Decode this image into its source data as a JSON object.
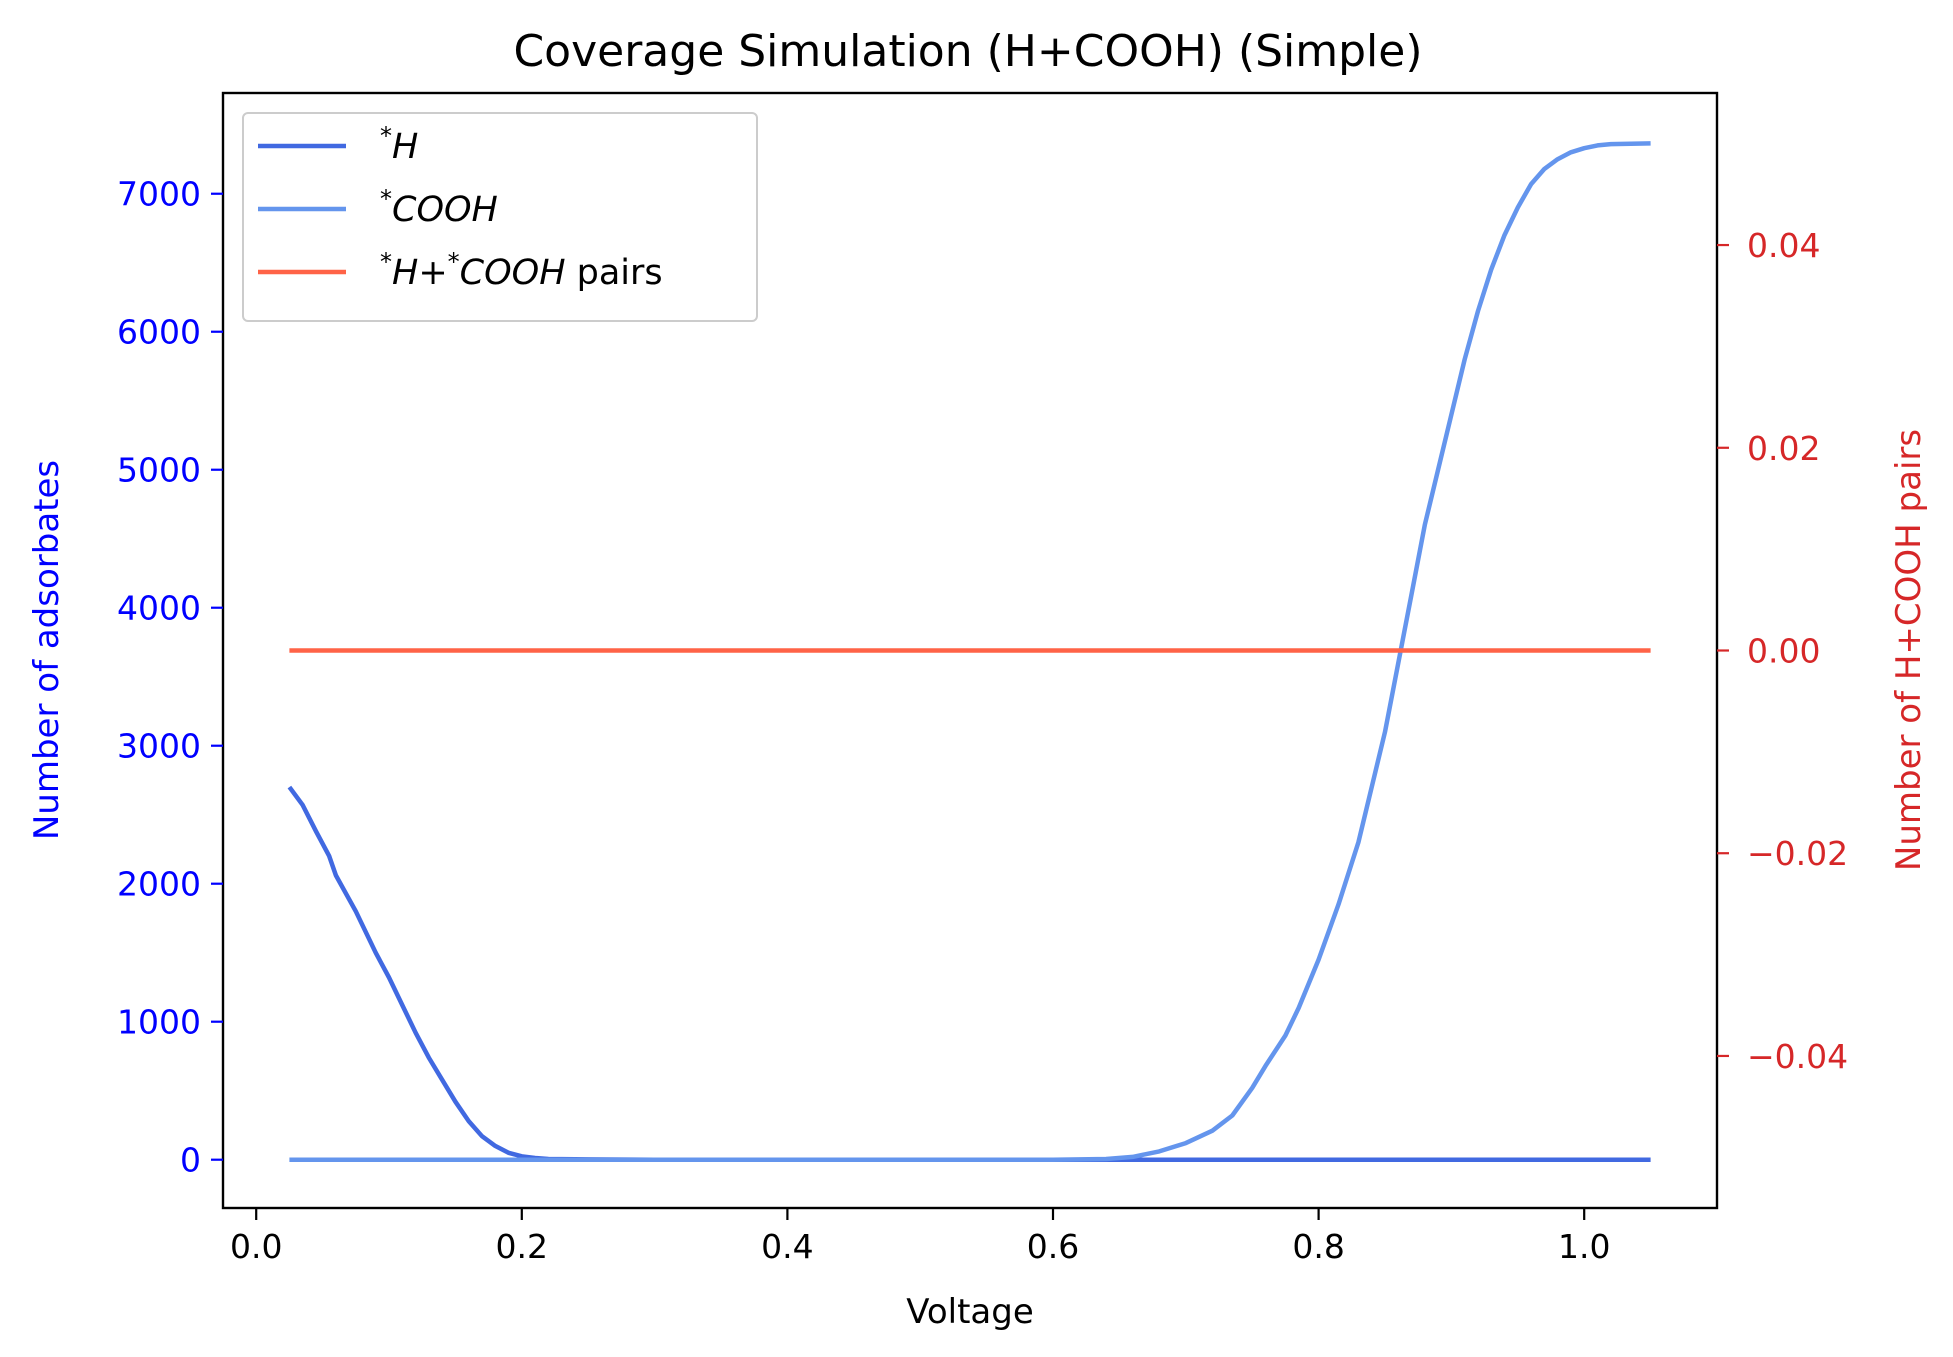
{
  "chart_data": {
    "type": "line",
    "title": "Coverage Simulation (H+COOH) (Simple)",
    "xlabel": "Voltage",
    "ylabel_left": "Number of adsorbates",
    "ylabel_right": "Number of H+COOH pairs",
    "xlim": [
      -0.025,
      1.1
    ],
    "ylim_left": [
      -350,
      7730
    ],
    "ylim_right": [
      -0.055,
      0.055
    ],
    "x_ticks": [
      0.0,
      0.2,
      0.4,
      0.6,
      0.8,
      1.0
    ],
    "x_tick_labels": [
      "0.0",
      "0.2",
      "0.4",
      "0.6",
      "0.8",
      "1.0"
    ],
    "y_left_ticks": [
      0,
      1000,
      2000,
      3000,
      4000,
      5000,
      6000,
      7000
    ],
    "y_left_tick_labels": [
      "0",
      "1000",
      "2000",
      "3000",
      "4000",
      "5000",
      "6000",
      "7000"
    ],
    "y_right_ticks": [
      -0.04,
      -0.02,
      0.0,
      0.02,
      0.04
    ],
    "y_right_tick_labels": [
      "−0.04",
      "−0.02",
      "0.00",
      "0.02",
      "0.04"
    ],
    "grid": false,
    "legend_position": "top-left",
    "colors": {
      "left_axis": "#0000ff",
      "right_axis": "#d62728",
      "h": "#4169e1",
      "cooh": "#6495ed",
      "pairs": "#ff6347"
    },
    "legend": [
      {
        "sup": "*",
        "name": "H",
        "suffix": ""
      },
      {
        "sup": "*",
        "name": "COOH",
        "suffix": ""
      },
      {
        "sup": "*",
        "name": "H+",
        "sup2": "*",
        "name2": "COOH",
        "suffix": " pairs"
      }
    ],
    "series": [
      {
        "name": "*H",
        "axis": "left",
        "color": "#4169e1",
        "points": [
          [
            0.025,
            2700
          ],
          [
            0.035,
            2570
          ],
          [
            0.045,
            2380
          ],
          [
            0.055,
            2200
          ],
          [
            0.06,
            2060
          ],
          [
            0.075,
            1800
          ],
          [
            0.09,
            1500
          ],
          [
            0.1,
            1320
          ],
          [
            0.11,
            1120
          ],
          [
            0.12,
            920
          ],
          [
            0.13,
            740
          ],
          [
            0.14,
            580
          ],
          [
            0.15,
            420
          ],
          [
            0.16,
            280
          ],
          [
            0.17,
            170
          ],
          [
            0.18,
            100
          ],
          [
            0.19,
            50
          ],
          [
            0.2,
            25
          ],
          [
            0.21,
            12
          ],
          [
            0.22,
            5
          ],
          [
            0.25,
            2
          ],
          [
            0.3,
            0
          ],
          [
            0.5,
            0
          ],
          [
            0.7,
            0
          ],
          [
            0.9,
            0
          ],
          [
            1.05,
            0
          ]
        ]
      },
      {
        "name": "*COOH",
        "axis": "left",
        "color": "#6495ed",
        "points": [
          [
            0.025,
            0
          ],
          [
            0.2,
            0
          ],
          [
            0.4,
            0
          ],
          [
            0.6,
            0
          ],
          [
            0.64,
            5
          ],
          [
            0.66,
            20
          ],
          [
            0.68,
            60
          ],
          [
            0.7,
            120
          ],
          [
            0.72,
            210
          ],
          [
            0.735,
            320
          ],
          [
            0.75,
            520
          ],
          [
            0.76,
            680
          ],
          [
            0.775,
            900
          ],
          [
            0.785,
            1100
          ],
          [
            0.8,
            1450
          ],
          [
            0.815,
            1850
          ],
          [
            0.83,
            2300
          ],
          [
            0.84,
            2700
          ],
          [
            0.85,
            3100
          ],
          [
            0.86,
            3600
          ],
          [
            0.87,
            4100
          ],
          [
            0.88,
            4600
          ],
          [
            0.89,
            5000
          ],
          [
            0.9,
            5400
          ],
          [
            0.91,
            5800
          ],
          [
            0.92,
            6150
          ],
          [
            0.93,
            6450
          ],
          [
            0.94,
            6700
          ],
          [
            0.95,
            6900
          ],
          [
            0.96,
            7070
          ],
          [
            0.97,
            7180
          ],
          [
            0.98,
            7250
          ],
          [
            0.99,
            7300
          ],
          [
            1.0,
            7330
          ],
          [
            1.01,
            7350
          ],
          [
            1.02,
            7360
          ],
          [
            1.05,
            7365
          ]
        ]
      },
      {
        "name": "*H+*COOH pairs",
        "axis": "right",
        "color": "#ff6347",
        "points": [
          [
            0.025,
            0.0
          ],
          [
            1.05,
            0.0
          ]
        ]
      }
    ]
  }
}
